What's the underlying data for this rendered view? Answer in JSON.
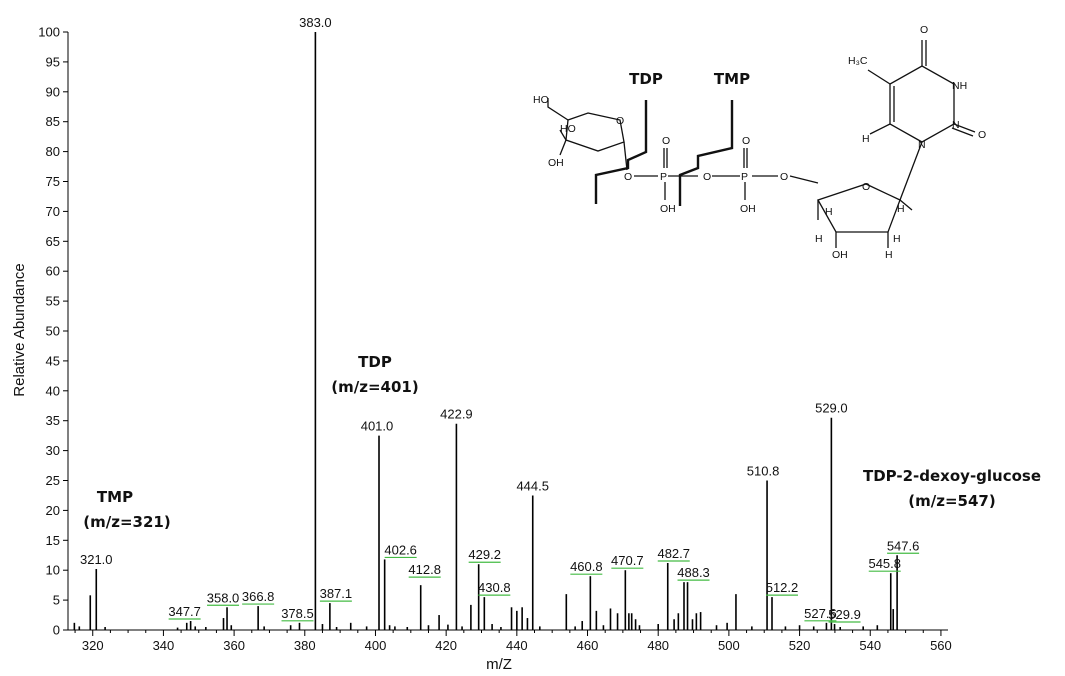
{
  "chart_data": {
    "type": "bar",
    "title": "",
    "xlabel": "m/Z",
    "ylabel": "Relative Abundance",
    "xlim": [
      313,
      562
    ],
    "ylim": [
      0,
      100
    ],
    "xticks": [
      320,
      340,
      360,
      380,
      400,
      420,
      440,
      460,
      480,
      500,
      520,
      540,
      560
    ],
    "yticks": [
      0,
      5,
      10,
      15,
      20,
      25,
      30,
      35,
      40,
      45,
      50,
      55,
      60,
      65,
      70,
      75,
      80,
      85,
      90,
      95,
      100
    ],
    "peaks": [
      {
        "x": 314.8,
        "y": 1.2
      },
      {
        "x": 316.2,
        "y": 0.6
      },
      {
        "x": 319.3,
        "y": 5.8
      },
      {
        "x": 321.0,
        "y": 10.2
      },
      {
        "x": 323.5,
        "y": 0.5
      },
      {
        "x": 344.0,
        "y": 0.4
      },
      {
        "x": 346.6,
        "y": 1.2
      },
      {
        "x": 347.7,
        "y": 1.5
      },
      {
        "x": 349.0,
        "y": 0.6
      },
      {
        "x": 352.0,
        "y": 0.5
      },
      {
        "x": 357.0,
        "y": 2.0
      },
      {
        "x": 358.0,
        "y": 3.8
      },
      {
        "x": 359.2,
        "y": 0.8
      },
      {
        "x": 366.8,
        "y": 4.0
      },
      {
        "x": 368.5,
        "y": 0.6
      },
      {
        "x": 376.0,
        "y": 0.8
      },
      {
        "x": 378.5,
        "y": 1.2
      },
      {
        "x": 383.0,
        "y": 100.0
      },
      {
        "x": 385.0,
        "y": 1.0
      },
      {
        "x": 387.1,
        "y": 4.5
      },
      {
        "x": 389.0,
        "y": 0.5
      },
      {
        "x": 393.0,
        "y": 1.2
      },
      {
        "x": 397.5,
        "y": 0.6
      },
      {
        "x": 401.0,
        "y": 32.5
      },
      {
        "x": 402.6,
        "y": 11.8
      },
      {
        "x": 404.0,
        "y": 0.8
      },
      {
        "x": 405.5,
        "y": 0.6
      },
      {
        "x": 409.0,
        "y": 0.5
      },
      {
        "x": 412.8,
        "y": 7.5
      },
      {
        "x": 415.0,
        "y": 0.8
      },
      {
        "x": 418.0,
        "y": 2.5
      },
      {
        "x": 420.5,
        "y": 0.9
      },
      {
        "x": 422.9,
        "y": 34.5
      },
      {
        "x": 424.5,
        "y": 0.6
      },
      {
        "x": 427.0,
        "y": 4.2
      },
      {
        "x": 429.2,
        "y": 11.0
      },
      {
        "x": 430.8,
        "y": 5.5
      },
      {
        "x": 433.0,
        "y": 1.0
      },
      {
        "x": 435.5,
        "y": 0.5
      },
      {
        "x": 438.5,
        "y": 3.8
      },
      {
        "x": 440.0,
        "y": 3.2
      },
      {
        "x": 441.5,
        "y": 3.8
      },
      {
        "x": 443.0,
        "y": 2.0
      },
      {
        "x": 444.5,
        "y": 22.5
      },
      {
        "x": 446.5,
        "y": 0.6
      },
      {
        "x": 454.0,
        "y": 6.0
      },
      {
        "x": 456.5,
        "y": 0.6
      },
      {
        "x": 458.5,
        "y": 1.5
      },
      {
        "x": 460.8,
        "y": 9.0
      },
      {
        "x": 462.5,
        "y": 3.2
      },
      {
        "x": 464.5,
        "y": 0.8
      },
      {
        "x": 466.5,
        "y": 3.6
      },
      {
        "x": 468.5,
        "y": 2.8
      },
      {
        "x": 470.7,
        "y": 10.0
      },
      {
        "x": 471.7,
        "y": 2.8
      },
      {
        "x": 472.5,
        "y": 2.8
      },
      {
        "x": 473.6,
        "y": 1.8
      },
      {
        "x": 474.7,
        "y": 0.8
      },
      {
        "x": 480.0,
        "y": 1.0
      },
      {
        "x": 482.7,
        "y": 11.2
      },
      {
        "x": 484.5,
        "y": 1.8
      },
      {
        "x": 485.7,
        "y": 2.8
      },
      {
        "x": 487.3,
        "y": 8.0
      },
      {
        "x": 488.3,
        "y": 8.0
      },
      {
        "x": 489.7,
        "y": 1.8
      },
      {
        "x": 490.8,
        "y": 2.8
      },
      {
        "x": 492.0,
        "y": 3.0
      },
      {
        "x": 496.5,
        "y": 0.8
      },
      {
        "x": 499.5,
        "y": 1.2
      },
      {
        "x": 502.0,
        "y": 6.0
      },
      {
        "x": 506.5,
        "y": 0.6
      },
      {
        "x": 510.8,
        "y": 25.0
      },
      {
        "x": 512.2,
        "y": 5.5
      },
      {
        "x": 516.0,
        "y": 0.6
      },
      {
        "x": 520.0,
        "y": 0.8
      },
      {
        "x": 524.0,
        "y": 0.6
      },
      {
        "x": 527.6,
        "y": 1.2
      },
      {
        "x": 529.0,
        "y": 35.5
      },
      {
        "x": 529.9,
        "y": 1.0
      },
      {
        "x": 531.5,
        "y": 0.5
      },
      {
        "x": 538.0,
        "y": 0.6
      },
      {
        "x": 542.0,
        "y": 0.8
      },
      {
        "x": 545.8,
        "y": 9.5
      },
      {
        "x": 546.5,
        "y": 3.5
      },
      {
        "x": 547.6,
        "y": 12.5
      }
    ],
    "peak_labels": [
      {
        "x": 321.0,
        "y": 10.2,
        "label": "321.0",
        "dx": 0,
        "dy": 0
      },
      {
        "x": 347.7,
        "y": 1.5,
        "label": "347.7",
        "dx": -6,
        "dy": 0
      },
      {
        "x": 358.0,
        "y": 3.8,
        "label": "358.0",
        "dx": -4,
        "dy": 0
      },
      {
        "x": 366.8,
        "y": 4.0,
        "label": "366.8",
        "dx": 0,
        "dy": 0
      },
      {
        "x": 378.5,
        "y": 1.2,
        "label": "378.5",
        "dx": -2,
        "dy": 0
      },
      {
        "x": 383.0,
        "y": 100.0,
        "label": "383.0",
        "dx": 0,
        "dy": 0
      },
      {
        "x": 387.1,
        "y": 4.5,
        "label": "387.1",
        "dx": 6,
        "dy": 0
      },
      {
        "x": 401.0,
        "y": 32.5,
        "label": "401.0",
        "dx": -2,
        "dy": 0
      },
      {
        "x": 402.6,
        "y": 11.8,
        "label": "402.6",
        "dx": 16,
        "dy": 0
      },
      {
        "x": 412.8,
        "y": 7.5,
        "label": "412.8",
        "dx": 4,
        "dy": -6
      },
      {
        "x": 422.9,
        "y": 34.5,
        "label": "422.9",
        "dx": 0,
        "dy": 0
      },
      {
        "x": 429.2,
        "y": 11.0,
        "label": "429.2",
        "dx": 6,
        "dy": 0
      },
      {
        "x": 430.8,
        "y": 5.5,
        "label": "430.8",
        "dx": 10,
        "dy": 0
      },
      {
        "x": 444.5,
        "y": 22.5,
        "label": "444.5",
        "dx": 0,
        "dy": 0
      },
      {
        "x": 460.8,
        "y": 9.0,
        "label": "460.8",
        "dx": -4,
        "dy": 0
      },
      {
        "x": 470.7,
        "y": 10.0,
        "label": "470.7",
        "dx": 2,
        "dy": 0
      },
      {
        "x": 482.7,
        "y": 11.2,
        "label": "482.7",
        "dx": 6,
        "dy": 0
      },
      {
        "x": 488.3,
        "y": 8.0,
        "label": "488.3",
        "dx": 6,
        "dy": 0
      },
      {
        "x": 510.8,
        "y": 25.0,
        "label": "510.8",
        "dx": -4,
        "dy": 0
      },
      {
        "x": 512.2,
        "y": 5.5,
        "label": "512.2",
        "dx": 10,
        "dy": 0
      },
      {
        "x": 527.6,
        "y": 1.2,
        "label": "527.6",
        "dx": -6,
        "dy": 0
      },
      {
        "x": 529.0,
        "y": 35.5,
        "label": "529.0",
        "dx": 0,
        "dy": 0
      },
      {
        "x": 529.9,
        "y": 1.0,
        "label": "529.9",
        "dx": 10,
        "dy": 0
      },
      {
        "x": 545.8,
        "y": 9.5,
        "label": "545.8",
        "dx": -6,
        "dy": 0
      },
      {
        "x": 547.6,
        "y": 12.5,
        "label": "547.6",
        "dx": 6,
        "dy": 0
      }
    ],
    "annotations": [
      {
        "name": "tmp",
        "lines": [
          "TMP",
          "(m/z=321)"
        ]
      },
      {
        "name": "tdp",
        "lines": [
          "TDP",
          "(m/z=401)"
        ]
      },
      {
        "name": "tdp-2-dexoy-glucose",
        "lines": [
          "TDP-2-dexoy-glucose",
          "(m/z=547)"
        ]
      }
    ]
  },
  "structure": {
    "cut_labels": {
      "tdp": "TDP",
      "tmp": "TMP"
    },
    "atoms": [
      "HO",
      "HO",
      "OH",
      "O",
      "O",
      "P",
      "O",
      "P",
      "O",
      "O",
      "O",
      "OH",
      "OH",
      "O",
      "H",
      "H",
      "H",
      "H",
      "OH",
      "H",
      "N",
      "N",
      "NH",
      "O",
      "O",
      "H",
      "H₃C"
    ]
  },
  "colors": {
    "bar": "#000000",
    "label_marker": "#44bb44"
  }
}
